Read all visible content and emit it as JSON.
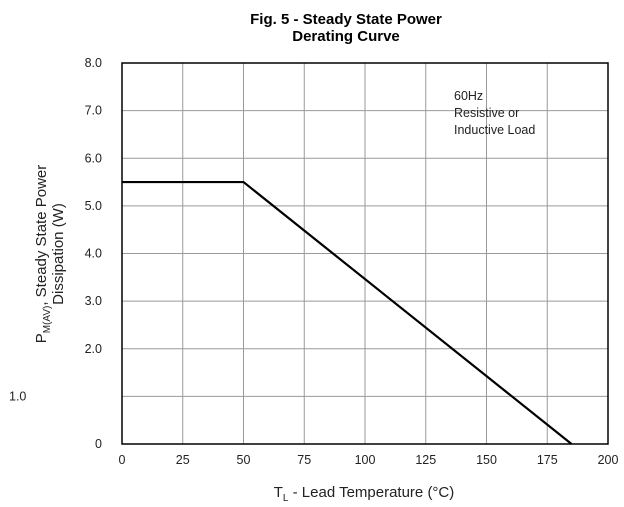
{
  "chart_data": {
    "type": "line",
    "title_line1": "Fig. 5 - Steady State Power",
    "title_line2": "Derating Curve",
    "xlabel_main": "T",
    "xlabel_sub": "L",
    "xlabel_rest": " - Lead Temperature (°C)",
    "ylabel_main_prefix": "P",
    "ylabel_sub": "M(AV)",
    "ylabel_main_rest": ", Steady State Power",
    "ylabel_line2": "Dissipation (W)",
    "xlim": [
      0,
      200
    ],
    "ylim": [
      0,
      8
    ],
    "x_ticks": [
      0,
      25,
      50,
      75,
      100,
      125,
      150,
      175,
      200
    ],
    "x_tick_labels": [
      "0",
      "25",
      "50",
      "75",
      "100",
      "125",
      "150",
      "175",
      "200"
    ],
    "y_ticks": [
      {
        "label": "8.0",
        "value": 8
      },
      {
        "label": "7.0",
        "value": 7
      },
      {
        "label": "6.0",
        "value": 6
      },
      {
        "label": "5.0",
        "value": 5
      },
      {
        "label": "4.0",
        "value": 4
      },
      {
        "label": "3.0",
        "value": 3
      },
      {
        "label": "2.0",
        "value": 2
      },
      {
        "label": "1.0",
        "value": 1,
        "offset_outside": true
      },
      {
        "label": "0",
        "value": 0
      }
    ],
    "grid": true,
    "series": [
      {
        "x": [
          0,
          50,
          185
        ],
        "y": [
          5.5,
          5.5,
          0
        ],
        "color": "#000000"
      }
    ],
    "annotation": [
      "60Hz",
      "Resistive or",
      "Inductive Load"
    ]
  }
}
